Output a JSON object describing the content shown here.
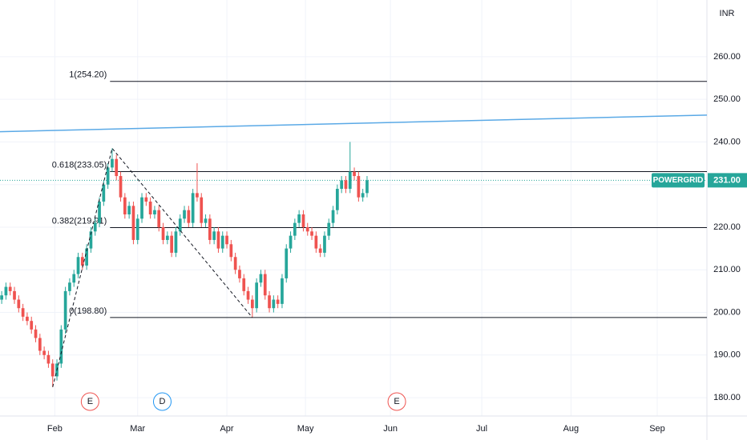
{
  "chart_data": {
    "type": "candlestick",
    "symbol": "POWERGRID",
    "currency": "INR",
    "up_color": "#26a69a",
    "down_color": "#ef5350",
    "grid": true,
    "ylim": [
      175.7,
      273.3
    ],
    "yticks": [
      {
        "value": 180,
        "label": "180.00"
      },
      {
        "value": 190,
        "label": "190.00"
      },
      {
        "value": 200,
        "label": "200.00"
      },
      {
        "value": 210,
        "label": "210.00"
      },
      {
        "value": 220,
        "label": "220.00"
      },
      {
        "value": 230,
        "label": "230.00"
      },
      {
        "value": 240,
        "label": "240.00"
      },
      {
        "value": 250,
        "label": "250.00"
      },
      {
        "value": 260,
        "label": "260.00"
      }
    ],
    "xlim": [
      -0.4,
      166
    ],
    "xticks": [
      {
        "value": 12.5,
        "label": "Feb"
      },
      {
        "value": 32,
        "label": "Mar"
      },
      {
        "value": 53,
        "label": "Apr"
      },
      {
        "value": 71.5,
        "label": "May"
      },
      {
        "value": 91.5,
        "label": "Jun"
      },
      {
        "value": 113,
        "label": "Jul"
      },
      {
        "value": 134,
        "label": "Aug"
      },
      {
        "value": 154.3,
        "label": "Sep"
      }
    ],
    "open": [
      203,
      204,
      206,
      205,
      203,
      201,
      199,
      198,
      196,
      194,
      191,
      190,
      188,
      185,
      188,
      196,
      205,
      207,
      209,
      213,
      211,
      215,
      219,
      221,
      226,
      230,
      234,
      236,
      232,
      227,
      223,
      225,
      217,
      222,
      227,
      226,
      223,
      224,
      220,
      217,
      218,
      214,
      219,
      222,
      224,
      221,
      228,
      227,
      221,
      222,
      217,
      219,
      215,
      218,
      216,
      213,
      210,
      208,
      205,
      203,
      201,
      207,
      209,
      204,
      201,
      203,
      202,
      208,
      215,
      218,
      221,
      223,
      220,
      219,
      218,
      215,
      214,
      218,
      221,
      224,
      229,
      231,
      229,
      233,
      232,
      227,
      228
    ],
    "high": [
      205,
      207,
      207,
      206,
      204,
      202,
      200,
      199,
      197,
      195,
      192,
      191,
      189,
      189,
      197,
      206,
      208,
      210,
      214,
      214,
      216,
      220,
      222,
      227,
      231,
      235,
      238.5,
      237,
      233,
      228,
      226,
      226,
      223,
      228,
      228,
      227,
      225,
      225,
      221,
      219,
      219,
      220,
      223,
      225,
      225,
      229,
      235,
      228,
      223,
      223,
      220,
      220,
      219,
      219,
      217,
      214,
      211,
      209,
      206,
      204,
      208,
      210,
      210,
      205,
      204,
      204,
      209,
      216,
      219,
      222,
      224,
      224,
      221,
      220,
      219,
      216,
      219,
      222,
      225,
      230,
      232,
      232,
      240,
      234,
      233,
      229,
      232
    ],
    "low": [
      202,
      203,
      204,
      202,
      200,
      198,
      197,
      195,
      193,
      190,
      189,
      187,
      182.5,
      184,
      187,
      195,
      204,
      206,
      208,
      210,
      210,
      214,
      218,
      220,
      225,
      229,
      233,
      231,
      226,
      222,
      222,
      216,
      216,
      221,
      225,
      222,
      222,
      219,
      216,
      216,
      213,
      213,
      218,
      221,
      220,
      220,
      226,
      220,
      220,
      216,
      216,
      214,
      214,
      215,
      212,
      209,
      207,
      204,
      202,
      198.8,
      200,
      206,
      203,
      200,
      200,
      201,
      201,
      207,
      214,
      217,
      220,
      219,
      218,
      217,
      214,
      213,
      213,
      217,
      220,
      223,
      228,
      228,
      228,
      231,
      226,
      226,
      227
    ],
    "close": [
      204,
      206,
      205,
      203,
      201,
      199,
      198,
      196,
      194,
      191,
      190,
      188,
      185,
      188,
      196,
      205,
      207,
      209,
      213,
      211,
      215,
      219,
      221,
      226,
      230,
      234,
      236,
      232,
      227,
      223,
      225,
      217,
      222,
      227,
      226,
      223,
      224,
      220,
      217,
      218,
      214,
      219,
      222,
      224,
      221,
      228,
      227,
      221,
      222,
      217,
      219,
      215,
      218,
      216,
      213,
      210,
      208,
      205,
      203,
      201,
      207,
      209,
      204,
      201,
      203,
      202,
      208,
      215,
      218,
      221,
      223,
      220,
      219,
      218,
      215,
      214,
      218,
      221,
      224,
      229,
      231,
      229,
      233,
      232,
      227,
      228,
      231
    ],
    "fib_levels": [
      {
        "label": "1(254.20)",
        "value": 254.2
      },
      {
        "label": "0.618(233.05)",
        "value": 233.05
      },
      {
        "label": "0.382(219.91)",
        "value": 219.91
      },
      {
        "label": "0(198.80)",
        "value": 198.8
      }
    ],
    "fib_start": 25.5,
    "zigzag": {
      "x": [
        12,
        26,
        59
      ],
      "values": [
        182.5,
        238.5,
        198.8
      ]
    },
    "trendline": {
      "color": "#5aa9e6",
      "x": [
        -0.4,
        166
      ],
      "values": [
        242.4,
        246.3
      ]
    },
    "last_price": {
      "value": 231,
      "label": "231.00"
    },
    "events": [
      {
        "label": "E",
        "x": 20.8,
        "color": "#ef5350"
      },
      {
        "label": "D",
        "x": 37.8,
        "color": "#2196f3"
      },
      {
        "label": "E",
        "x": 93,
        "color": "#ef5350"
      }
    ]
  }
}
